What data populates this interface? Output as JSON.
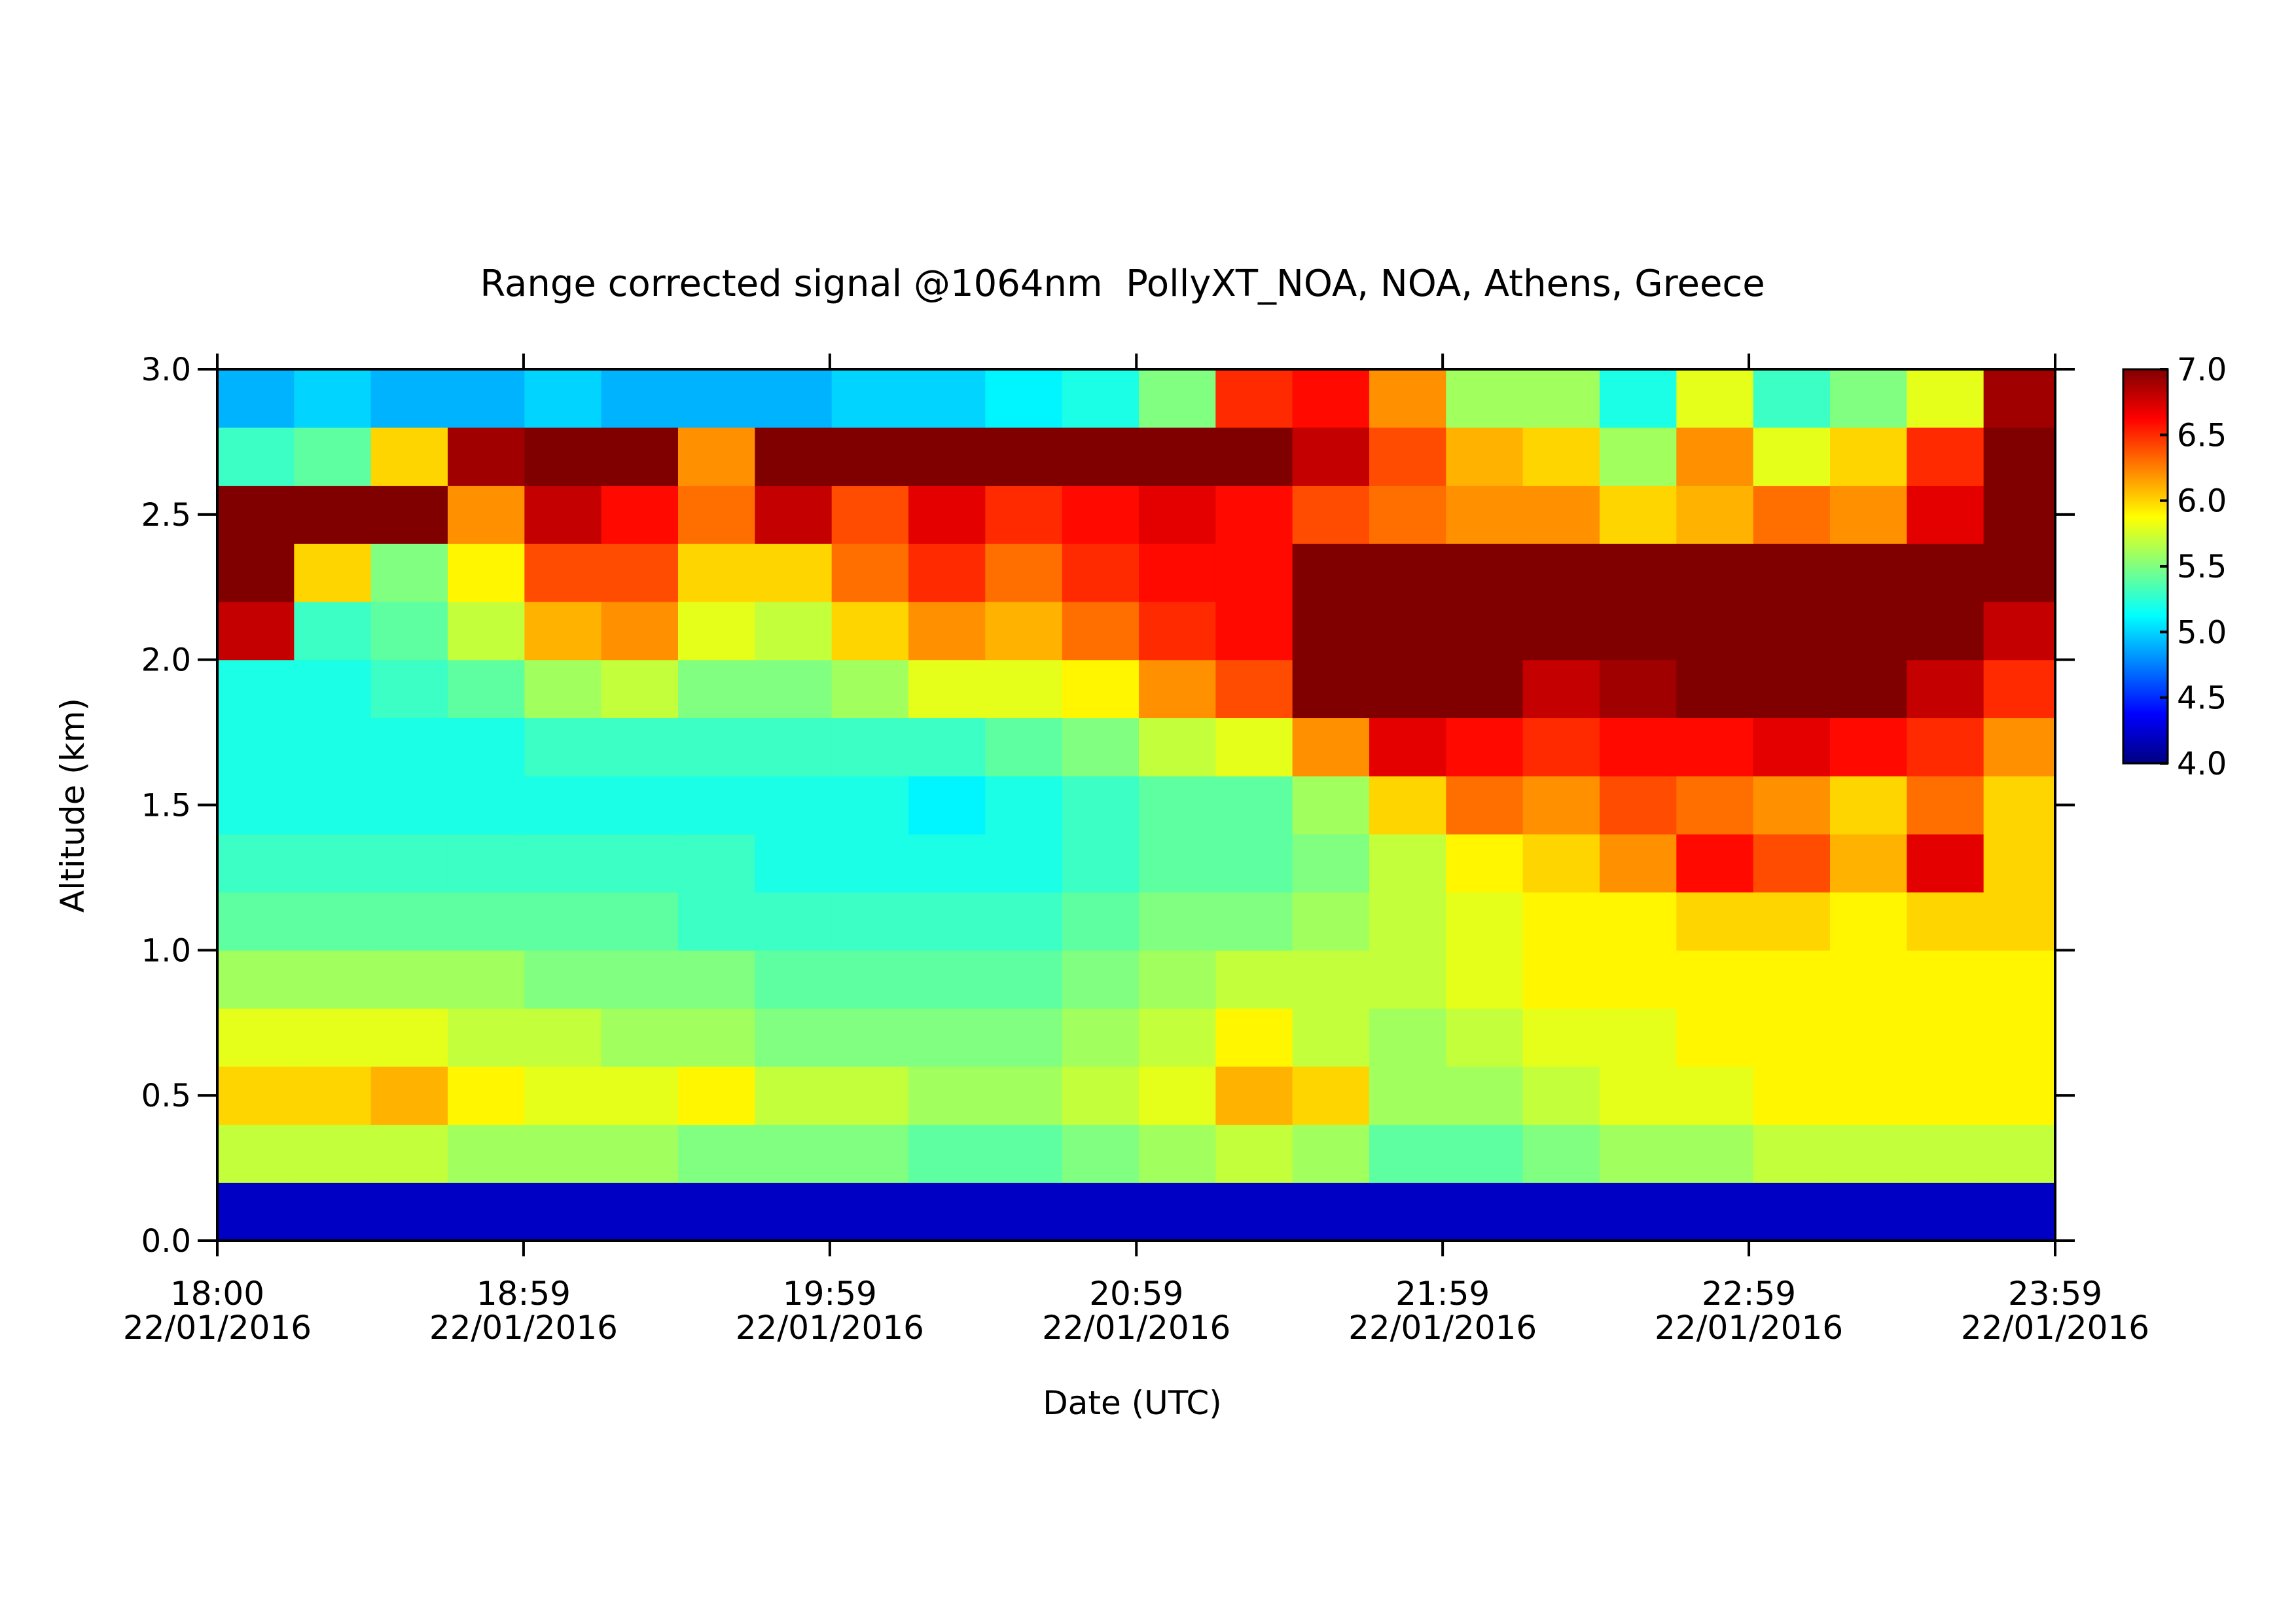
{
  "chart_data": {
    "type": "heatmap",
    "title": "Range corrected signal @1064nm  PollyXT_NOA, NOA, Athens, Greece",
    "x_label": "Date (UTC)",
    "y_label": "Altitude (km)",
    "xlim": [
      18,
      23.983
    ],
    "xticks": [
      {
        "value": 18,
        "label": "18:00",
        "date": "22/01/2016"
      },
      {
        "value": 18.997,
        "label": "18:59",
        "date": "22/01/2016"
      },
      {
        "value": 19.994,
        "label": "19:59",
        "date": "22/01/2016"
      },
      {
        "value": 20.992,
        "label": "20:59",
        "date": "22/01/2016"
      },
      {
        "value": 21.989,
        "label": "21:59",
        "date": "22/01/2016"
      },
      {
        "value": 22.986,
        "label": "22:59",
        "date": "22/01/2016"
      },
      {
        "value": 23.983,
        "label": "23:59",
        "date": "22/01/2016"
      }
    ],
    "ylim": [
      0,
      3
    ],
    "yticks": [
      {
        "value": 0,
        "label": "0.0"
      },
      0.5,
      {
        "value": 1,
        "label": "1.0"
      },
      1.5,
      {
        "value": 2,
        "label": "2.0"
      },
      2.5,
      {
        "value": 3,
        "label": "3.0"
      }
    ],
    "zlim": [
      4,
      7
    ],
    "zticks": [
      {
        "value": 4,
        "label": "4.0"
      },
      4.5,
      {
        "value": 5,
        "label": "5.0"
      },
      5.5,
      {
        "value": 6,
        "label": "6.0"
      },
      6.5,
      {
        "value": 7,
        "label": "7.0"
      }
    ],
    "colormap": "jet",
    "x": [
      18.125,
      18.375,
      18.625,
      18.875,
      19.125,
      19.375,
      19.625,
      19.875,
      20.125,
      20.375,
      20.625,
      20.875,
      21.125,
      21.375,
      21.625,
      21.875,
      22.125,
      22.375,
      22.625,
      22.875,
      23.125,
      23.375,
      23.625,
      23.875
    ],
    "y": [
      0.1,
      0.3,
      0.5,
      0.7,
      0.9,
      1.1,
      1.3,
      1.5,
      1.7,
      1.9,
      2.1,
      2.3,
      2.5,
      2.7,
      2.9
    ],
    "z": [
      [
        4.2,
        4.2,
        4.2,
        4.2,
        4.2,
        4.2,
        4.2,
        4.2,
        4.2,
        4.2,
        4.2,
        4.2,
        4.2,
        4.2,
        4.2,
        4.2,
        4.2,
        4.2,
        4.2,
        4.2,
        4.2,
        4.2,
        4.2,
        4.2
      ],
      [
        5.7,
        5.7,
        5.7,
        5.6,
        5.6,
        5.6,
        5.5,
        5.5,
        5.5,
        5.4,
        5.4,
        5.5,
        5.6,
        5.7,
        5.6,
        5.4,
        5.4,
        5.5,
        5.6,
        5.6,
        5.7,
        5.7,
        5.7,
        5.7
      ],
      [
        6.0,
        6.0,
        6.1,
        5.9,
        5.8,
        5.8,
        5.9,
        5.7,
        5.7,
        5.6,
        5.6,
        5.7,
        5.8,
        6.1,
        6.0,
        5.6,
        5.6,
        5.7,
        5.8,
        5.8,
        5.9,
        5.9,
        5.9,
        5.9
      ],
      [
        5.8,
        5.8,
        5.8,
        5.7,
        5.7,
        5.6,
        5.6,
        5.5,
        5.5,
        5.5,
        5.5,
        5.6,
        5.7,
        5.9,
        5.7,
        5.6,
        5.7,
        5.8,
        5.8,
        5.9,
        5.9,
        5.9,
        5.9,
        5.9
      ],
      [
        5.6,
        5.6,
        5.6,
        5.6,
        5.5,
        5.5,
        5.5,
        5.4,
        5.4,
        5.4,
        5.4,
        5.5,
        5.6,
        5.7,
        5.7,
        5.7,
        5.8,
        5.9,
        5.9,
        5.9,
        5.9,
        5.9,
        5.9,
        5.9
      ],
      [
        5.4,
        5.4,
        5.4,
        5.4,
        5.4,
        5.4,
        5.3,
        5.3,
        5.3,
        5.3,
        5.3,
        5.4,
        5.5,
        5.5,
        5.6,
        5.7,
        5.8,
        5.9,
        5.9,
        6.0,
        6.0,
        5.9,
        6.0,
        6.0
      ],
      [
        5.3,
        5.3,
        5.3,
        5.3,
        5.3,
        5.3,
        5.3,
        5.2,
        5.2,
        5.2,
        5.2,
        5.3,
        5.4,
        5.4,
        5.5,
        5.7,
        5.9,
        6.0,
        6.2,
        6.6,
        6.4,
        6.1,
        6.7,
        6.0
      ],
      [
        5.2,
        5.2,
        5.2,
        5.2,
        5.2,
        5.2,
        5.2,
        5.2,
        5.2,
        5.1,
        5.2,
        5.3,
        5.4,
        5.4,
        5.6,
        6.0,
        6.3,
        6.2,
        6.4,
        6.3,
        6.2,
        6.0,
        6.3,
        6.0
      ],
      [
        5.2,
        5.2,
        5.2,
        5.2,
        5.3,
        5.3,
        5.3,
        5.3,
        5.3,
        5.3,
        5.4,
        5.5,
        5.7,
        5.8,
        6.2,
        6.7,
        6.6,
        6.5,
        6.6,
        6.6,
        6.7,
        6.6,
        6.5,
        6.2
      ],
      [
        5.2,
        5.2,
        5.3,
        5.4,
        5.6,
        5.7,
        5.5,
        5.5,
        5.6,
        5.8,
        5.8,
        5.9,
        6.2,
        6.4,
        7.0,
        7.0,
        7.0,
        6.8,
        6.9,
        7.0,
        7.0,
        7.0,
        6.8,
        6.5
      ],
      [
        6.8,
        5.3,
        5.4,
        5.7,
        6.1,
        6.2,
        5.8,
        5.7,
        6.0,
        6.2,
        6.1,
        6.3,
        6.5,
        6.6,
        7.0,
        7.0,
        7.0,
        7.0,
        7.0,
        7.0,
        7.0,
        7.0,
        7.0,
        6.8
      ],
      [
        7.0,
        6.0,
        5.5,
        5.9,
        6.4,
        6.4,
        6.0,
        6.0,
        6.3,
        6.5,
        6.3,
        6.5,
        6.6,
        6.6,
        7.0,
        7.0,
        7.0,
        7.0,
        7.0,
        7.0,
        7.0,
        7.0,
        7.0,
        7.0
      ],
      [
        7.0,
        7.0,
        7.0,
        6.2,
        6.8,
        6.6,
        6.3,
        6.8,
        6.4,
        6.7,
        6.5,
        6.6,
        6.7,
        6.6,
        6.4,
        6.3,
        6.2,
        6.2,
        6.0,
        6.1,
        6.3,
        6.2,
        6.7,
        7.0
      ],
      [
        5.3,
        5.4,
        6.0,
        6.9,
        7.0,
        7.0,
        6.2,
        7.0,
        7.0,
        7.0,
        7.0,
        7.0,
        7.0,
        7.0,
        6.8,
        6.4,
        6.1,
        6.0,
        5.6,
        6.2,
        5.8,
        6.0,
        6.5,
        7.0
      ],
      [
        4.9,
        5.0,
        4.9,
        4.9,
        5.0,
        4.9,
        4.9,
        4.9,
        5.0,
        5.0,
        5.1,
        5.2,
        5.5,
        6.5,
        6.6,
        6.2,
        5.6,
        5.6,
        5.2,
        5.8,
        5.3,
        5.5,
        5.8,
        6.9
      ]
    ]
  }
}
